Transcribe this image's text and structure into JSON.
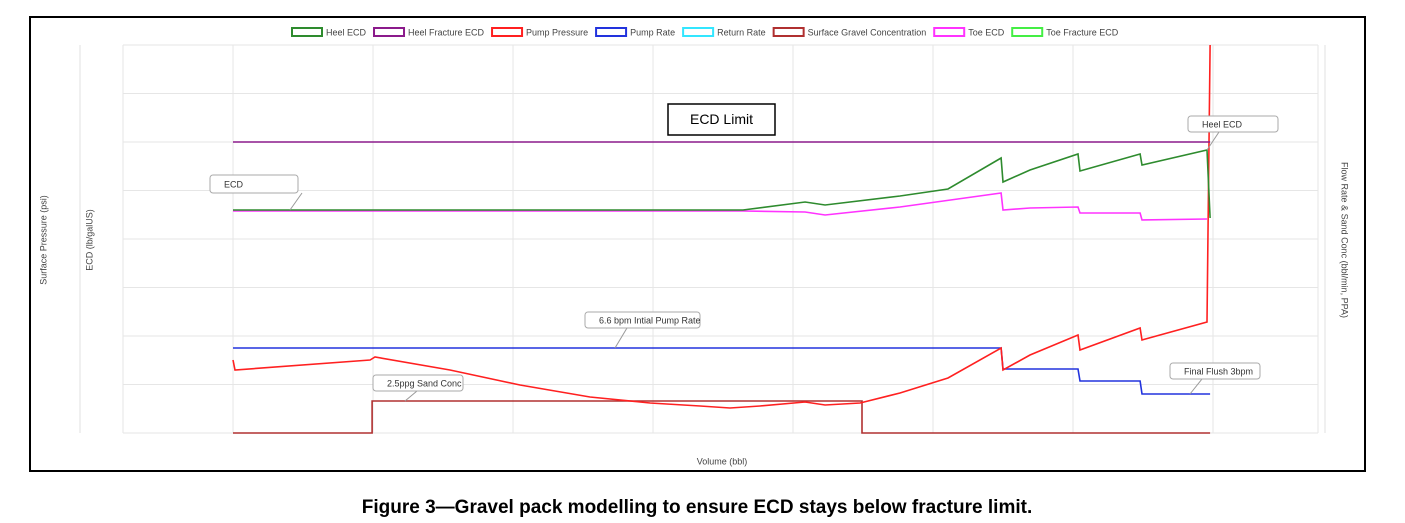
{
  "chart_data": {
    "type": "line",
    "x_label": "Volume (bbl)",
    "y_label": "ECD (lb/galUS)",
    "y_label_pressure": "Surface Pressure (psi)",
    "y2_label": "Flow Rate & Sand Conc (bbl/min, PPA)",
    "caption": "Figure 3—Gravel pack modelling to ensure ECD stays below fracture limit.",
    "xlim": [
      -0.786,
      7.75
    ],
    "ylim": [
      0,
      8
    ],
    "grid": true,
    "legend": "top",
    "series": [
      {
        "name": "Heel ECD",
        "color": "#2e8b2e",
        "x": [
          0,
          3.643,
          4.086,
          4.229,
          4.764,
          5.107,
          5.486,
          5.5,
          5.693,
          6.036,
          6.05,
          6.479,
          6.493,
          6.957,
          6.979
        ],
        "values": [
          4.598,
          4.598,
          4.763,
          4.701,
          4.887,
          5.031,
          5.67,
          5.175,
          5.423,
          5.753,
          5.402,
          5.753,
          5.526,
          5.835,
          4.433
        ]
      },
      {
        "name": "Heel Fracture ECD",
        "color": "#8b1a8b",
        "x": [
          0,
          6.979
        ],
        "values": [
          6.0,
          6.0
        ]
      },
      {
        "name": "Pump Pressure",
        "color": "#ff2020",
        "x": [
          0,
          0.014,
          0.979,
          1.014,
          1.55,
          2.05,
          2.55,
          2.979,
          3.336,
          3.55,
          3.764,
          4.086,
          4.229,
          4.479,
          4.764,
          5.107,
          5.486,
          5.5,
          5.693,
          6.036,
          6.05,
          6.479,
          6.493,
          6.957,
          6.979
        ],
        "values": [
          1.505,
          1.299,
          1.505,
          1.567,
          1.299,
          0.99,
          0.742,
          0.619,
          0.557,
          0.515,
          0.557,
          0.639,
          0.577,
          0.619,
          0.825,
          1.134,
          1.753,
          1.299,
          1.608,
          2.021,
          1.711,
          2.165,
          1.918,
          2.289,
          8.0
        ]
      },
      {
        "name": "Pump Rate",
        "color": "#2233dd",
        "x": [
          0,
          5.486,
          5.5,
          6.036,
          6.05,
          6.479,
          6.493,
          6.979
        ],
        "values": [
          1.753,
          1.753,
          1.32,
          1.32,
          1.072,
          1.072,
          0.804,
          0.804
        ]
      },
      {
        "name": "Return Rate",
        "color": "#33e6ff",
        "x": [],
        "values": []
      },
      {
        "name": "Surface Gravel Concentration",
        "color": "#b03030",
        "x": [
          0,
          0.993,
          0.993,
          4.493,
          4.493,
          6.979
        ],
        "values": [
          0,
          0,
          0.66,
          0.66,
          0,
          0
        ]
      },
      {
        "name": "Toe ECD",
        "color": "#ff33ff",
        "x": [
          0,
          3.643,
          4.086,
          4.229,
          4.764,
          5.486,
          5.5,
          5.693,
          6.036,
          6.05,
          6.479,
          6.493,
          6.957
        ],
        "values": [
          4.577,
          4.577,
          4.557,
          4.495,
          4.66,
          4.948,
          4.598,
          4.639,
          4.66,
          4.536,
          4.536,
          4.392,
          4.412
        ]
      },
      {
        "name": "Toe Fracture ECD",
        "color": "#44ee44",
        "x": [],
        "values": []
      }
    ],
    "annotations": [
      "ECD Limit",
      "ECD",
      "Heel ECD",
      "6.6 bpm Intial Pump Rate",
      "2.5ppg Sand Conc",
      "Final Flush 3bpm"
    ]
  }
}
